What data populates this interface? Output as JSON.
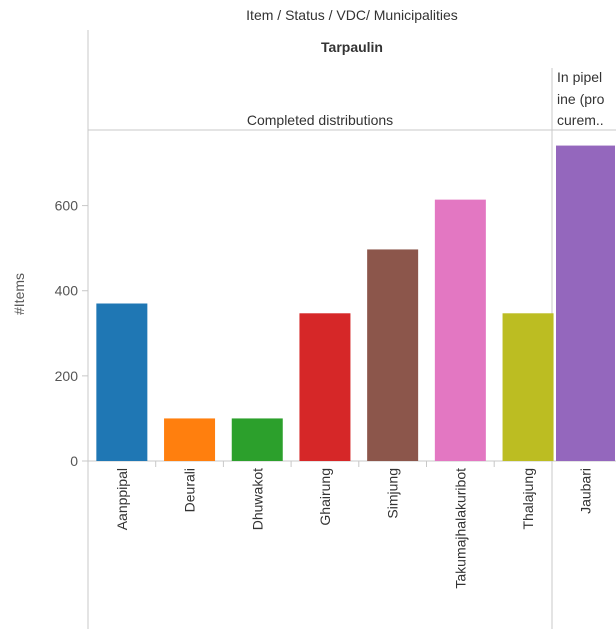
{
  "header": {
    "title": "Item  /  Status  /  VDC/ Municipalities",
    "item": "Tarpaulin"
  },
  "chart_data": {
    "type": "bar",
    "ylabel": "#Items",
    "ylim": [
      0,
      740
    ],
    "yticks": [
      0,
      200,
      400,
      600
    ],
    "grid": false,
    "legend": "none",
    "panels": [
      {
        "status": "Completed distributions",
        "categories": [
          "Aanppipal",
          "Deurali",
          "Dhuwakot",
          "Ghairung",
          "Simjung",
          "Takumajhalakuribot",
          "Thalajung"
        ],
        "values": [
          370,
          100,
          100,
          347,
          497,
          614,
          347
        ]
      },
      {
        "status": "In pipeline (procurem..",
        "status_lines": [
          "In pipel",
          "ine (pro",
          "curem.."
        ],
        "categories": [
          "Jaubari"
        ],
        "values": [
          741
        ]
      }
    ],
    "colors": [
      "#1f77b4",
      "#ff7f0e",
      "#2ca02c",
      "#d62728",
      "#8c564b",
      "#e377c2",
      "#bcbd22",
      "#9467bd"
    ]
  }
}
